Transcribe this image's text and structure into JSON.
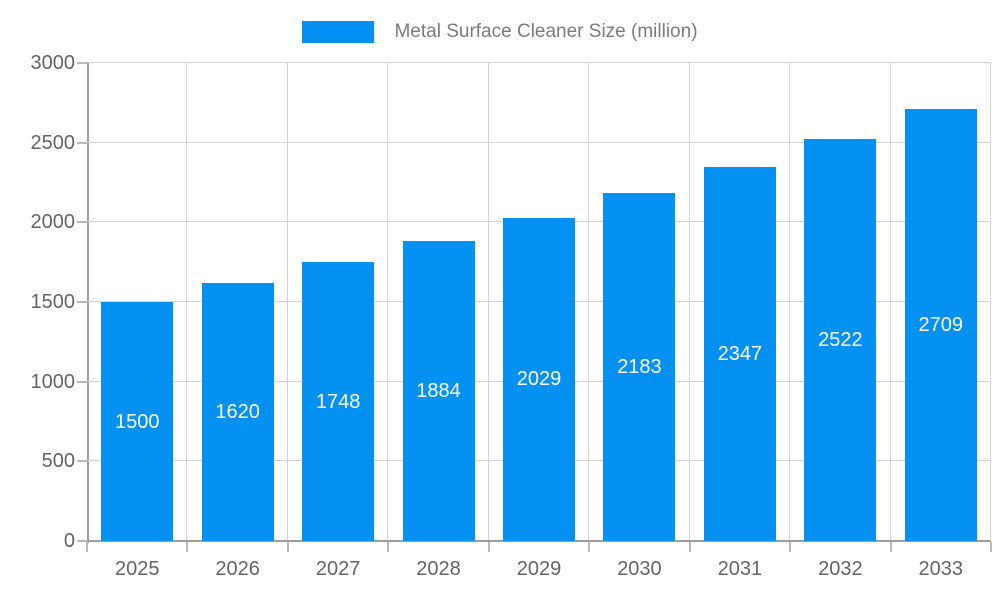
{
  "chart_data": {
    "type": "bar",
    "title": "",
    "legend_label": "Metal Surface Cleaner Size (million)",
    "legend_position": "top-center",
    "categories": [
      "2025",
      "2026",
      "2027",
      "2028",
      "2029",
      "2030",
      "2031",
      "2032",
      "2033"
    ],
    "values": [
      1500,
      1620,
      1748,
      1884,
      2029,
      2183,
      2347,
      2522,
      2709
    ],
    "value_labels_shown_inside_bars": true,
    "xlabel": "",
    "ylabel": "",
    "ylim": [
      0,
      3000
    ],
    "yticks": [
      0,
      500,
      1000,
      1500,
      2000,
      2500,
      3000
    ],
    "grid": "on",
    "colors": {
      "bar": "#0591F2",
      "bar_value_text": "#ffffff",
      "gridline": "#d2d2d2",
      "axis_line": "#9e9e9e",
      "tick_mark": "#b9b9b9",
      "tick_text": "#646464",
      "legend_text": "#7b7b7b",
      "background": "#ffffff"
    }
  }
}
